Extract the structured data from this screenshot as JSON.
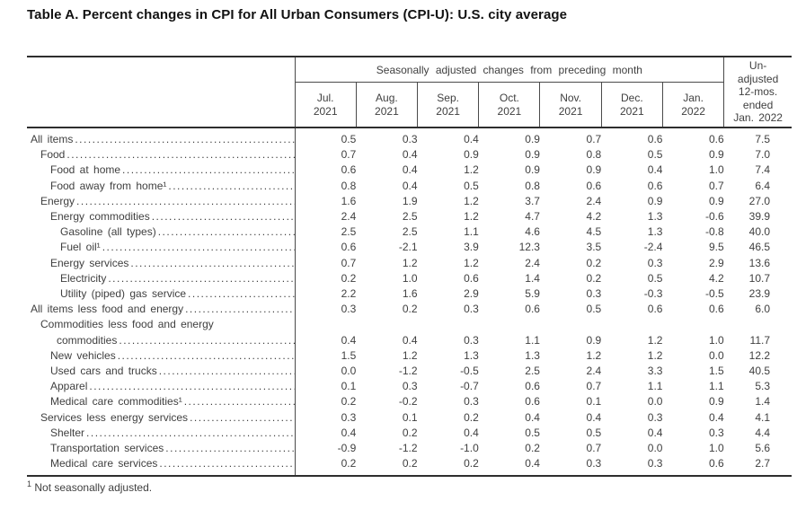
{
  "title": "Table A. Percent changes in CPI for All Urban Consumers (CPI-U): U.S. city average",
  "table": {
    "group_header": "Seasonally adjusted changes from preceding month",
    "month_columns": [
      "Jul.\n2021",
      "Aug.\n2021",
      "Sep.\n2021",
      "Oct.\n2021",
      "Nov.\n2021",
      "Dec.\n2021",
      "Jan.\n2022"
    ],
    "unadjusted_header": "Un-\nadjusted\n12-mos.\nended\nJan. 2022",
    "rows": [
      {
        "label": "All items",
        "indent": 0,
        "values": [
          "0.5",
          "0.3",
          "0.4",
          "0.9",
          "0.7",
          "0.6",
          "0.6",
          "7.5"
        ]
      },
      {
        "label": "Food",
        "indent": 1,
        "values": [
          "0.7",
          "0.4",
          "0.9",
          "0.9",
          "0.8",
          "0.5",
          "0.9",
          "7.0"
        ]
      },
      {
        "label": "Food at home",
        "indent": 2,
        "values": [
          "0.6",
          "0.4",
          "1.2",
          "0.9",
          "0.9",
          "0.4",
          "1.0",
          "7.4"
        ]
      },
      {
        "label": "Food away from home¹",
        "indent": 2,
        "values": [
          "0.8",
          "0.4",
          "0.5",
          "0.8",
          "0.6",
          "0.6",
          "0.7",
          "6.4"
        ]
      },
      {
        "label": "Energy",
        "indent": 1,
        "values": [
          "1.6",
          "1.9",
          "1.2",
          "3.7",
          "2.4",
          "0.9",
          "0.9",
          "27.0"
        ]
      },
      {
        "label": "Energy commodities",
        "indent": 2,
        "values": [
          "2.4",
          "2.5",
          "1.2",
          "4.7",
          "4.2",
          "1.3",
          "-0.6",
          "39.9"
        ]
      },
      {
        "label": "Gasoline (all types)",
        "indent": 3,
        "values": [
          "2.5",
          "2.5",
          "1.1",
          "4.6",
          "4.5",
          "1.3",
          "-0.8",
          "40.0"
        ]
      },
      {
        "label": "Fuel oil¹",
        "indent": 3,
        "values": [
          "0.6",
          "-2.1",
          "3.9",
          "12.3",
          "3.5",
          "-2.4",
          "9.5",
          "46.5"
        ]
      },
      {
        "label": "Energy services",
        "indent": 2,
        "values": [
          "0.7",
          "1.2",
          "1.2",
          "2.4",
          "0.2",
          "0.3",
          "2.9",
          "13.6"
        ]
      },
      {
        "label": "Electricity",
        "indent": 3,
        "values": [
          "0.2",
          "1.0",
          "0.6",
          "1.4",
          "0.2",
          "0.5",
          "4.2",
          "10.7"
        ]
      },
      {
        "label": "Utility (piped) gas service",
        "indent": 3,
        "values": [
          "2.2",
          "1.6",
          "2.9",
          "5.9",
          "0.3",
          "-0.3",
          "-0.5",
          "23.9"
        ]
      },
      {
        "label": "All items less food and energy",
        "indent": 0,
        "values": [
          "0.3",
          "0.2",
          "0.3",
          "0.6",
          "0.5",
          "0.6",
          "0.6",
          "6.0"
        ]
      },
      {
        "label": "Commodities less food and energy",
        "label2": "commodities",
        "indent": 1,
        "values": [
          "0.4",
          "0.4",
          "0.3",
          "1.1",
          "0.9",
          "1.2",
          "1.0",
          "11.7"
        ]
      },
      {
        "label": "New vehicles",
        "indent": 2,
        "values": [
          "1.5",
          "1.2",
          "1.3",
          "1.3",
          "1.2",
          "1.2",
          "0.0",
          "12.2"
        ]
      },
      {
        "label": "Used cars and trucks",
        "indent": 2,
        "values": [
          "0.0",
          "-1.2",
          "-0.5",
          "2.5",
          "2.4",
          "3.3",
          "1.5",
          "40.5"
        ]
      },
      {
        "label": "Apparel",
        "indent": 2,
        "values": [
          "0.1",
          "0.3",
          "-0.7",
          "0.6",
          "0.7",
          "1.1",
          "1.1",
          "5.3"
        ]
      },
      {
        "label": "Medical care commodities¹",
        "indent": 2,
        "values": [
          "0.2",
          "-0.2",
          "0.3",
          "0.6",
          "0.1",
          "0.0",
          "0.9",
          "1.4"
        ]
      },
      {
        "label": "Services less energy services",
        "indent": 1,
        "values": [
          "0.3",
          "0.1",
          "0.2",
          "0.4",
          "0.4",
          "0.3",
          "0.4",
          "4.1"
        ]
      },
      {
        "label": "Shelter",
        "indent": 2,
        "values": [
          "0.4",
          "0.2",
          "0.4",
          "0.5",
          "0.5",
          "0.4",
          "0.3",
          "4.4"
        ]
      },
      {
        "label": "Transportation services",
        "indent": 2,
        "values": [
          "-0.9",
          "-1.2",
          "-1.0",
          "0.2",
          "0.7",
          "0.0",
          "1.0",
          "5.6"
        ]
      },
      {
        "label": "Medical care services",
        "indent": 2,
        "values": [
          "0.2",
          "0.2",
          "0.2",
          "0.4",
          "0.3",
          "0.3",
          "0.6",
          "2.7"
        ]
      }
    ]
  },
  "footnote": {
    "marker": "1",
    "text": "Not seasonally adjusted."
  },
  "colors": {
    "background": "#ffffff",
    "text": "#3f3f3f",
    "title_text": "#121212",
    "border_heavy": "#2e2e2e",
    "border_light": "#4a4a4a"
  }
}
